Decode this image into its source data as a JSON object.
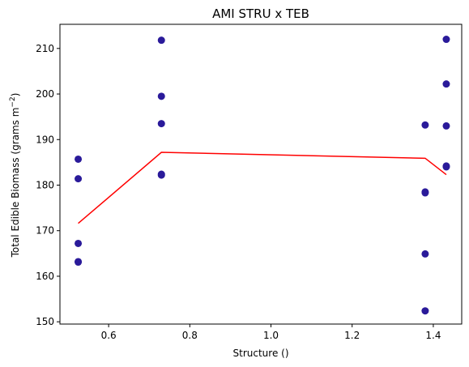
{
  "chart_data": {
    "type": "scatter",
    "title": "AMI STRU x TEB",
    "xlabel": "Structure ()",
    "ylabel_main": "Total Edible Biomass (grams m",
    "ylabel_sup": "−2",
    "ylabel_end": ")",
    "xlim": [
      0.48,
      1.47
    ],
    "ylim": [
      149.5,
      215.3
    ],
    "xticks": [
      0.6,
      0.8,
      1.0,
      1.2,
      1.4
    ],
    "xtick_labels": [
      "0.6",
      "0.8",
      "1.0",
      "1.2",
      "1.4"
    ],
    "yticks": [
      150,
      160,
      170,
      180,
      190,
      200,
      210
    ],
    "ytick_labels": [
      "150",
      "160",
      "170",
      "180",
      "190",
      "200",
      "210"
    ],
    "grid": false,
    "series": [
      {
        "kind": "points",
        "color": "#2a1a9a",
        "points": [
          [
            0.525,
            185.7
          ],
          [
            0.525,
            181.4
          ],
          [
            0.525,
            167.2
          ],
          [
            0.525,
            163.2
          ],
          [
            0.525,
            163.1
          ],
          [
            0.73,
            211.8
          ],
          [
            0.73,
            199.5
          ],
          [
            0.73,
            193.5
          ],
          [
            0.73,
            182.4
          ],
          [
            0.73,
            182.2
          ],
          [
            1.38,
            193.2
          ],
          [
            1.38,
            178.5
          ],
          [
            1.38,
            178.3
          ],
          [
            1.38,
            164.9
          ],
          [
            1.38,
            152.4
          ],
          [
            1.432,
            212.0
          ],
          [
            1.432,
            202.2
          ],
          [
            1.432,
            193.0
          ],
          [
            1.432,
            184.2
          ],
          [
            1.432,
            184.0
          ]
        ]
      },
      {
        "kind": "line",
        "color": "#ff0000",
        "points": [
          [
            0.525,
            171.6
          ],
          [
            0.73,
            187.2
          ],
          [
            1.38,
            185.9
          ],
          [
            1.432,
            182.3
          ]
        ]
      }
    ]
  }
}
